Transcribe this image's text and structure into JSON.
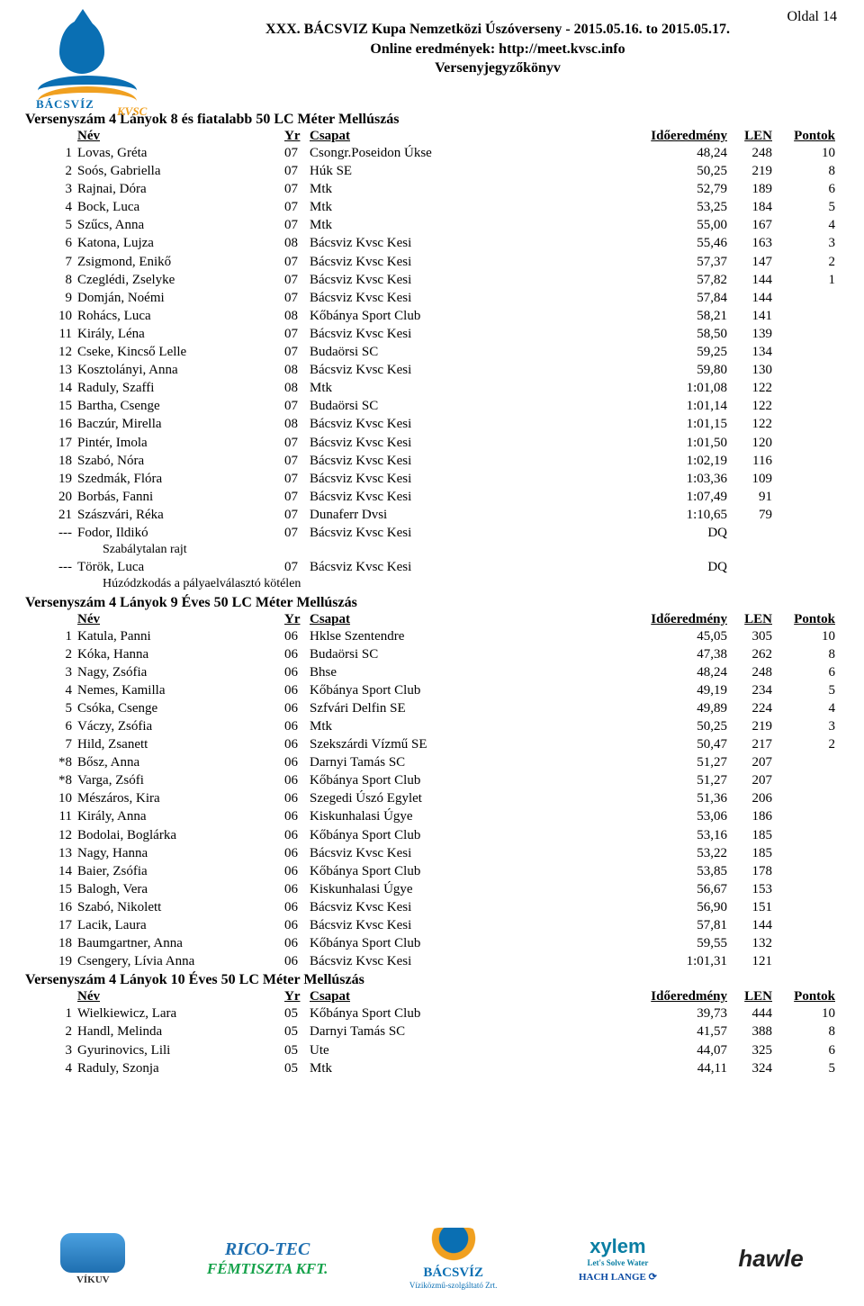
{
  "page_label": "Oldal 14",
  "logo": {
    "brand": "BÁCSVÍZ",
    "sub": "KVSC"
  },
  "header": {
    "line1": "XXX. BÁCSVIZ Kupa Nemzetközi Úszóverseny - 2015.05.16. to 2015.05.17.",
    "line2": "Online eredmények: http://meet.kvsc.info",
    "line3": "Versenyjegyzőkönyv"
  },
  "col_labels": {
    "name": "Név",
    "yr": "Yr",
    "team": "Csapat",
    "time": "Időeredmény",
    "len": "LEN",
    "pts": "Pontok"
  },
  "sections": [
    {
      "title": "Versenyszám 4   Lányok 8 és fiatalabb 50 LC Méter Mellúszás",
      "rows": [
        {
          "rank": "1",
          "name": "Lovas, Gréta",
          "yr": "07",
          "team": "Csongr.Poseidon Úkse",
          "time": "48,24",
          "len": "248",
          "pts": "10"
        },
        {
          "rank": "2",
          "name": "Soós, Gabriella",
          "yr": "07",
          "team": "Húk SE",
          "time": "50,25",
          "len": "219",
          "pts": "8"
        },
        {
          "rank": "3",
          "name": "Rajnai, Dóra",
          "yr": "07",
          "team": "Mtk",
          "time": "52,79",
          "len": "189",
          "pts": "6"
        },
        {
          "rank": "4",
          "name": "Bock, Luca",
          "yr": "07",
          "team": "Mtk",
          "time": "53,25",
          "len": "184",
          "pts": "5"
        },
        {
          "rank": "5",
          "name": "Szűcs, Anna",
          "yr": "07",
          "team": "Mtk",
          "time": "55,00",
          "len": "167",
          "pts": "4"
        },
        {
          "rank": "6",
          "name": "Katona, Lujza",
          "yr": "08",
          "team": "Bácsviz Kvsc Kesi",
          "time": "55,46",
          "len": "163",
          "pts": "3"
        },
        {
          "rank": "7",
          "name": "Zsigmond, Enikő",
          "yr": "07",
          "team": "Bácsviz Kvsc Kesi",
          "time": "57,37",
          "len": "147",
          "pts": "2"
        },
        {
          "rank": "8",
          "name": "Czeglédi, Zselyke",
          "yr": "07",
          "team": "Bácsviz Kvsc Kesi",
          "time": "57,82",
          "len": "144",
          "pts": "1"
        },
        {
          "rank": "9",
          "name": "Domján, Noémi",
          "yr": "07",
          "team": "Bácsviz Kvsc Kesi",
          "time": "57,84",
          "len": "144",
          "pts": ""
        },
        {
          "rank": "10",
          "name": "Rohács, Luca",
          "yr": "08",
          "team": "Kőbánya Sport Club",
          "time": "58,21",
          "len": "141",
          "pts": ""
        },
        {
          "rank": "11",
          "name": "Király, Léna",
          "yr": "07",
          "team": "Bácsviz Kvsc Kesi",
          "time": "58,50",
          "len": "139",
          "pts": ""
        },
        {
          "rank": "12",
          "name": "Cseke, Kincső Lelle",
          "yr": "07",
          "team": "Budaörsi SC",
          "time": "59,25",
          "len": "134",
          "pts": ""
        },
        {
          "rank": "13",
          "name": "Kosztolányi, Anna",
          "yr": "08",
          "team": "Bácsviz Kvsc Kesi",
          "time": "59,80",
          "len": "130",
          "pts": ""
        },
        {
          "rank": "14",
          "name": "Raduly, Szaffi",
          "yr": "08",
          "team": "Mtk",
          "time": "1:01,08",
          "len": "122",
          "pts": ""
        },
        {
          "rank": "15",
          "name": "Bartha, Csenge",
          "yr": "07",
          "team": "Budaörsi SC",
          "time": "1:01,14",
          "len": "122",
          "pts": ""
        },
        {
          "rank": "16",
          "name": "Baczúr, Mirella",
          "yr": "08",
          "team": "Bácsviz Kvsc Kesi",
          "time": "1:01,15",
          "len": "122",
          "pts": ""
        },
        {
          "rank": "17",
          "name": "Pintér, Imola",
          "yr": "07",
          "team": "Bácsviz Kvsc Kesi",
          "time": "1:01,50",
          "len": "120",
          "pts": ""
        },
        {
          "rank": "18",
          "name": "Szabó, Nóra",
          "yr": "07",
          "team": "Bácsviz Kvsc Kesi",
          "time": "1:02,19",
          "len": "116",
          "pts": ""
        },
        {
          "rank": "19",
          "name": "Szedmák, Flóra",
          "yr": "07",
          "team": "Bácsviz Kvsc Kesi",
          "time": "1:03,36",
          "len": "109",
          "pts": ""
        },
        {
          "rank": "20",
          "name": "Borbás, Fanni",
          "yr": "07",
          "team": "Bácsviz Kvsc Kesi",
          "time": "1:07,49",
          "len": "91",
          "pts": ""
        },
        {
          "rank": "21",
          "name": "Szászvári, Réka",
          "yr": "07",
          "team": "Dunaferr    Dvsi",
          "time": "1:10,65",
          "len": "79",
          "pts": ""
        },
        {
          "rank": "---",
          "name": "Fodor, Ildikó",
          "yr": "07",
          "team": "Bácsviz Kvsc Kesi",
          "time": "DQ",
          "len": "",
          "pts": "",
          "note": "Szabálytalan rajt"
        },
        {
          "rank": "---",
          "name": "Török, Luca",
          "yr": "07",
          "team": "Bácsviz Kvsc Kesi",
          "time": "DQ",
          "len": "",
          "pts": "",
          "note": "Húzódzkodás a pályaelválasztó kötélen"
        }
      ]
    },
    {
      "title": "Versenyszám 4   Lányok 9 Éves 50 LC Méter Mellúszás",
      "rows": [
        {
          "rank": "1",
          "name": "Katula, Panni",
          "yr": "06",
          "team": "Hklse Szentendre",
          "time": "45,05",
          "len": "305",
          "pts": "10"
        },
        {
          "rank": "2",
          "name": "Kóka, Hanna",
          "yr": "06",
          "team": "Budaörsi SC",
          "time": "47,38",
          "len": "262",
          "pts": "8"
        },
        {
          "rank": "3",
          "name": "Nagy, Zsófia",
          "yr": "06",
          "team": "Bhse",
          "time": "48,24",
          "len": "248",
          "pts": "6"
        },
        {
          "rank": "4",
          "name": "Nemes, Kamilla",
          "yr": "06",
          "team": "Kőbánya Sport Club",
          "time": "49,19",
          "len": "234",
          "pts": "5"
        },
        {
          "rank": "5",
          "name": "Csóka, Csenge",
          "yr": "06",
          "team": "Szfvári Delfin SE",
          "time": "49,89",
          "len": "224",
          "pts": "4"
        },
        {
          "rank": "6",
          "name": "Váczy, Zsófia",
          "yr": "06",
          "team": "Mtk",
          "time": "50,25",
          "len": "219",
          "pts": "3"
        },
        {
          "rank": "7",
          "name": "Hild, Zsanett",
          "yr": "06",
          "team": "Szekszárdi Vízmű SE",
          "time": "50,47",
          "len": "217",
          "pts": "2"
        },
        {
          "rank": "*8",
          "name": "Bősz, Anna",
          "yr": "06",
          "team": "Darnyi Tamás SC",
          "time": "51,27",
          "len": "207",
          "pts": ""
        },
        {
          "rank": "*8",
          "name": "Varga, Zsófi",
          "yr": "06",
          "team": "Kőbánya Sport Club",
          "time": "51,27",
          "len": "207",
          "pts": ""
        },
        {
          "rank": "10",
          "name": "Mészáros, Kira",
          "yr": "06",
          "team": "Szegedi Úszó Egylet",
          "time": "51,36",
          "len": "206",
          "pts": ""
        },
        {
          "rank": "11",
          "name": "Király, Anna",
          "yr": "06",
          "team": "Kiskunhalasi Úgye",
          "time": "53,06",
          "len": "186",
          "pts": ""
        },
        {
          "rank": "12",
          "name": "Bodolai, Boglárka",
          "yr": "06",
          "team": "Kőbánya Sport Club",
          "time": "53,16",
          "len": "185",
          "pts": ""
        },
        {
          "rank": "13",
          "name": "Nagy, Hanna",
          "yr": "06",
          "team": "Bácsviz Kvsc Kesi",
          "time": "53,22",
          "len": "185",
          "pts": ""
        },
        {
          "rank": "14",
          "name": "Baier, Zsófia",
          "yr": "06",
          "team": "Kőbánya Sport Club",
          "time": "53,85",
          "len": "178",
          "pts": ""
        },
        {
          "rank": "15",
          "name": "Balogh, Vera",
          "yr": "06",
          "team": "Kiskunhalasi Úgye",
          "time": "56,67",
          "len": "153",
          "pts": ""
        },
        {
          "rank": "16",
          "name": "Szabó, Nikolett",
          "yr": "06",
          "team": "Bácsviz Kvsc Kesi",
          "time": "56,90",
          "len": "151",
          "pts": ""
        },
        {
          "rank": "17",
          "name": "Lacik, Laura",
          "yr": "06",
          "team": "Bácsviz Kvsc Kesi",
          "time": "57,81",
          "len": "144",
          "pts": ""
        },
        {
          "rank": "18",
          "name": "Baumgartner, Anna",
          "yr": "06",
          "team": "Kőbánya Sport Club",
          "time": "59,55",
          "len": "132",
          "pts": ""
        },
        {
          "rank": "19",
          "name": "Csengery, Lívia Anna",
          "yr": "06",
          "team": "Bácsviz Kvsc Kesi",
          "time": "1:01,31",
          "len": "121",
          "pts": ""
        }
      ]
    },
    {
      "title": "Versenyszám 4   Lányok 10 Éves 50 LC Méter Mellúszás",
      "rows": [
        {
          "rank": "1",
          "name": "Wielkiewicz, Lara",
          "yr": "05",
          "team": "Kőbánya Sport Club",
          "time": "39,73",
          "len": "444",
          "pts": "10"
        },
        {
          "rank": "2",
          "name": "Handl, Melinda",
          "yr": "05",
          "team": "Darnyi Tamás SC",
          "time": "41,57",
          "len": "388",
          "pts": "8"
        },
        {
          "rank": "3",
          "name": "Gyurinovics, Lili",
          "yr": "05",
          "team": "Ute",
          "time": "44,07",
          "len": "325",
          "pts": "6"
        },
        {
          "rank": "4",
          "name": "Raduly, Szonja",
          "yr": "05",
          "team": "Mtk",
          "time": "44,11",
          "len": "324",
          "pts": "5"
        }
      ]
    }
  ],
  "sponsors": [
    {
      "label": "VÍKUV",
      "color": "#1f6fb0"
    },
    {
      "label": "RICO-TEC",
      "color": "#15a24a"
    },
    {
      "label": "FÉMTISZTA KFT.",
      "color": "#1f6fb0"
    },
    {
      "label": "BÁCSVÍZ",
      "color": "#0a6fb3"
    },
    {
      "label": "xylem",
      "color": "#0a7ea3"
    },
    {
      "label": "LANGE",
      "color": "#0a4aa3"
    },
    {
      "label": "hawle",
      "color": "#222222"
    }
  ],
  "sponsor_sub": {
    "bacsviz": "Víziközmű-szolgáltató Zrt.",
    "xylem": "Let's Solve Water",
    "lange": "HACH    LANGE ⟳"
  }
}
